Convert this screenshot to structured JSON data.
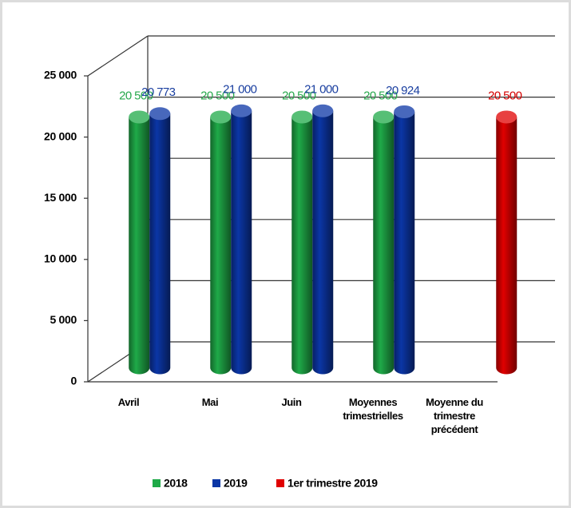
{
  "chart_data": {
    "type": "bar",
    "categories": [
      "Avril",
      "Mai",
      "Juin",
      "Moyennes trimestrielles",
      "Moyenne du trimestre précédent"
    ],
    "series": [
      {
        "name": "2018",
        "color": "#1faa48",
        "values": [
          20500,
          20500,
          20500,
          20500,
          null
        ],
        "value_labels": [
          "20 500",
          "20 500",
          "20 500",
          "20 500",
          null
        ]
      },
      {
        "name": "2019",
        "color": "#0b36a6",
        "values": [
          20773,
          21000,
          21000,
          20924,
          null
        ],
        "value_labels": [
          "20 773",
          "21 000",
          "21 000",
          "20 924",
          null
        ]
      },
      {
        "name": "1er trimestre 2019",
        "color": "#e00000",
        "values": [
          null,
          null,
          null,
          null,
          20500
        ],
        "value_labels": [
          null,
          null,
          null,
          null,
          "20 500"
        ]
      }
    ],
    "ylim": [
      0,
      25000
    ],
    "yticks": [
      0,
      {
        "value": 5000,
        "label": "5 000"
      },
      {
        "value": 10000,
        "label": "10 000"
      },
      {
        "value": 15000,
        "label": "15 000"
      },
      {
        "value": 20000,
        "label": "20 000"
      },
      {
        "value": 25000,
        "label": "25 000"
      }
    ],
    "grid": true,
    "legend": "bottom"
  }
}
